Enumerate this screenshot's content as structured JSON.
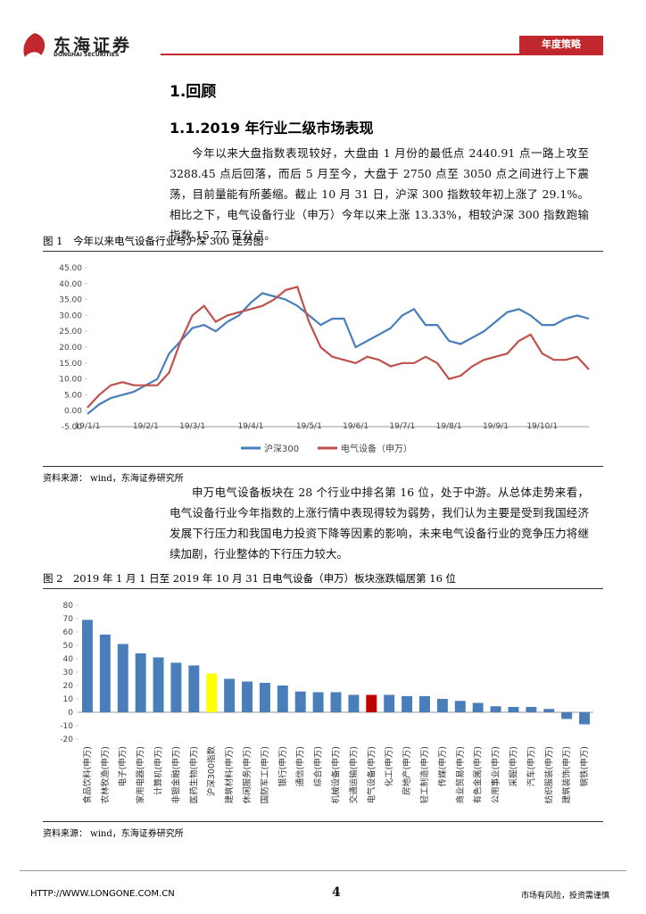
{
  "header": {
    "logo": "东海证券",
    "logo_en": "DONGHAI SECURITIES",
    "tag": "年度策略"
  },
  "section_title": "1.回顾",
  "subsection_title": "1.1.2019 年行业二级市场表现",
  "paragraphs": [
    "今年以来大盘指数表现较好，大盘由 1 月份的最低点 2440.91 点一路上攻至 3288.45 点后回落，而后 5 月至今，大盘于 2750 点至 3050 点之间进行上下震荡，目前量能有所萎缩。截止 10 月 31 日，沪深 300 指数较年初上涨了 29.1%。相比之下，电气设备行业（申万）今年以来上涨 13.33%，相较沪深 300 指数跑输指数 15.77 百分点。",
    "申万电气设备板块在 28 个行业中排名第 16 位，处于中游。从总体走势来看，电气设备行业今年指数的上涨行情中表现得较为弱势，我们认为主要是受到我国经济发展下行压力和我国电力投资下降等因素的影响，未来电气设备行业的竞争压力将继续加剧，行业整体的下行压力较大。"
  ],
  "figures": [
    {
      "caption": "图 1　今年以来电气设备行业与沪深 300 走势图",
      "source": "资料来源： wind，东海证券研究所",
      "chart_data": {
        "type": "line",
        "categories": [
          "19/1/1",
          null,
          null,
          null,
          null,
          "19/2/1",
          null,
          null,
          null,
          "19/3/1",
          null,
          null,
          null,
          null,
          "19/4/1",
          null,
          null,
          null,
          null,
          "19/5/1",
          null,
          null,
          null,
          "19/6/1",
          null,
          null,
          null,
          "19/7/1",
          null,
          null,
          null,
          "19/8/1",
          null,
          null,
          null,
          "19/9/1",
          null,
          null,
          null,
          "19/10/1",
          null,
          null,
          null,
          null
        ],
        "series": [
          {
            "name": "沪深300",
            "color": "#4a7ebb",
            "values": [
              -1,
              2,
              4,
              5,
              6,
              8,
              10,
              18,
              22,
              26,
              27,
              25,
              28,
              30,
              34,
              37,
              36,
              35,
              33,
              30,
              27,
              29,
              29,
              20,
              22,
              24,
              26,
              30,
              32,
              27,
              27,
              22,
              21,
              23,
              25,
              28,
              31,
              32,
              30,
              27,
              27,
              29,
              30,
              29
            ]
          },
          {
            "name": "电气设备（申万）",
            "color": "#c0504d",
            "values": [
              1,
              5,
              8,
              9,
              8,
              8,
              8,
              12,
              22,
              30,
              33,
              28,
              30,
              31,
              32,
              33,
              35,
              38,
              39,
              28,
              20,
              17,
              16,
              15,
              17,
              16,
              14,
              15,
              15,
              17,
              15,
              10,
              11,
              14,
              16,
              17,
              18,
              22,
              24,
              18,
              16,
              16,
              17,
              13
            ]
          }
        ],
        "ylim": [
          -5,
          45
        ],
        "yticks": [
          {
            "value": -5,
            "label": "-5.00"
          },
          {
            "value": 0,
            "label": "0.00"
          },
          {
            "value": 5,
            "label": "5.00"
          },
          {
            "value": 10,
            "label": "10.00"
          },
          {
            "value": 15,
            "label": "15.00"
          },
          {
            "value": 20,
            "label": "20.00"
          },
          {
            "value": 25,
            "label": "25.00"
          },
          {
            "value": 30,
            "label": "30.00"
          },
          {
            "value": 35,
            "label": "35.00"
          },
          {
            "value": 40,
            "label": "40.00"
          },
          {
            "value": 45,
            "label": "45.00"
          }
        ],
        "grid": false,
        "legend": "bottom"
      }
    },
    {
      "caption": "图 2　2019 年 1 月 1 日至 2019 年 10 月 31 日电气设备（申万）板块涨跌幅居第 16 位",
      "source": "资料来源： wind，东海证券研究所",
      "chart_data": {
        "type": "bar",
        "categories": [
          "食品饮料(申万)",
          "农林牧渔(申万)",
          "电子(申万)",
          "家用电器(申万)",
          "计算机(申万)",
          "非银金融(申万)",
          "医药生物(申万)",
          "沪深300指数",
          "建筑材料(申万)",
          "休闲服务(申万)",
          "国防军工(申万)",
          "银行(申万)",
          "通信(申万)",
          "综合(申万)",
          "机械设备(申万)",
          "交通运输(申万)",
          "电气设备(申万)",
          "化工(申万)",
          "房地产(申万)",
          "轻工制造(申万)",
          "传媒(申万)",
          "商业贸易(申万)",
          "有色金属(申万)",
          "公用事业(申万)",
          "采掘(申万)",
          "汽车(申万)",
          "纺织服装(申万)",
          "建筑装饰(申万)",
          "钢铁(申万)"
        ],
        "values": [
          69,
          58,
          51,
          44,
          41,
          37,
          35,
          29,
          25,
          23,
          22,
          20,
          15.5,
          15,
          15,
          13,
          13,
          13,
          12,
          12,
          10,
          8.5,
          7,
          4.5,
          4,
          4,
          2.5,
          -5,
          -9
        ],
        "colors": [
          "#4a7ebb",
          "#4a7ebb",
          "#4a7ebb",
          "#4a7ebb",
          "#4a7ebb",
          "#4a7ebb",
          "#4a7ebb",
          "#ffff00",
          "#4a7ebb",
          "#4a7ebb",
          "#4a7ebb",
          "#4a7ebb",
          "#4a7ebb",
          "#4a7ebb",
          "#4a7ebb",
          "#4a7ebb",
          "#c00000",
          "#4a7ebb",
          "#4a7ebb",
          "#4a7ebb",
          "#4a7ebb",
          "#4a7ebb",
          "#4a7ebb",
          "#4a7ebb",
          "#4a7ebb",
          "#4a7ebb",
          "#4a7ebb",
          "#4a7ebb",
          "#4a7ebb"
        ],
        "ylim": [
          -20,
          80
        ],
        "yticks": [
          -20,
          -10,
          0,
          10,
          20,
          30,
          40,
          50,
          60,
          70,
          80
        ],
        "grid": false
      }
    }
  ],
  "footer": {
    "url": "HTTP://WWW.LONGONE.COM.CN",
    "page": "4",
    "disclaimer": "市场有风险，投资需谨慎"
  }
}
